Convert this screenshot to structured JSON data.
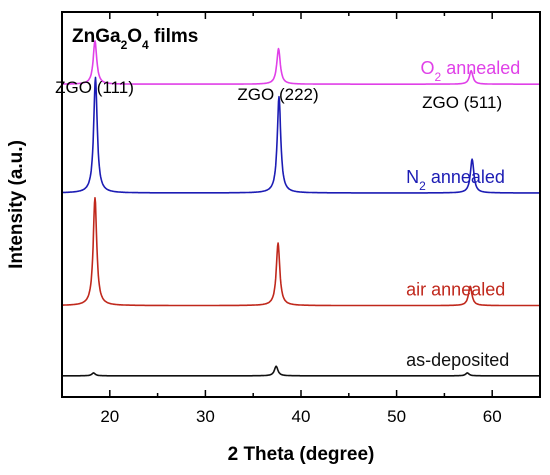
{
  "chart_data": {
    "type": "line",
    "title": "ZnGa2O4 films",
    "title_parts": {
      "p1": "ZnGa",
      "s1": "2",
      "p2": "O",
      "s2": "4",
      "p3": " films"
    },
    "xlabel": "2 Theta (degree)",
    "ylabel": "Intensity (a.u.)",
    "xlim": [
      15,
      65
    ],
    "x_ticks": [
      20,
      30,
      40,
      50,
      60
    ],
    "y_ticks_shown": false,
    "grid": false,
    "legend": "none",
    "peak_annotations": [
      {
        "text": "ZGO (111)",
        "x": 18.4
      },
      {
        "text": "ZGO (222)",
        "x": 37.6
      },
      {
        "text": "ZGO (511)",
        "x": 57.9
      }
    ],
    "series": [
      {
        "name": "O2 annealed",
        "label_parts": {
          "p1": "O",
          "sub": "2",
          "p2": " annealed"
        },
        "color": "#e040e8",
        "label_x": 52.5,
        "baseline": 3.25,
        "peaks": [
          {
            "x": 18.45,
            "h": 0.45
          },
          {
            "x": 37.65,
            "h": 0.37
          },
          {
            "x": 57.8,
            "h": 0.14
          }
        ]
      },
      {
        "name": "N2 annealed",
        "label_parts": {
          "p1": "N",
          "sub": "2",
          "p2": " annealed"
        },
        "color": "#1c1cb4",
        "label_x": 51.0,
        "baseline": 2.12,
        "peaks": [
          {
            "x": 18.5,
            "h": 1.2
          },
          {
            "x": 37.7,
            "h": 1.0
          },
          {
            "x": 57.9,
            "h": 0.35
          }
        ]
      },
      {
        "name": "air annealed",
        "label_parts": {
          "p1": "air annealed",
          "sub": "",
          "p2": ""
        },
        "color": "#c0281c",
        "label_x": 51.0,
        "baseline": 0.95,
        "peaks": [
          {
            "x": 18.45,
            "h": 1.12
          },
          {
            "x": 37.6,
            "h": 0.65
          },
          {
            "x": 57.7,
            "h": 0.2
          }
        ]
      },
      {
        "name": "as-deposited",
        "label_parts": {
          "p1": "as-deposited",
          "sub": "",
          "p2": ""
        },
        "color": "#111111",
        "label_x": 51.0,
        "baseline": 0.22,
        "peaks": [
          {
            "x": 18.3,
            "h": 0.03
          },
          {
            "x": 37.4,
            "h": 0.1
          },
          {
            "x": 57.4,
            "h": 0.03
          }
        ]
      }
    ]
  }
}
